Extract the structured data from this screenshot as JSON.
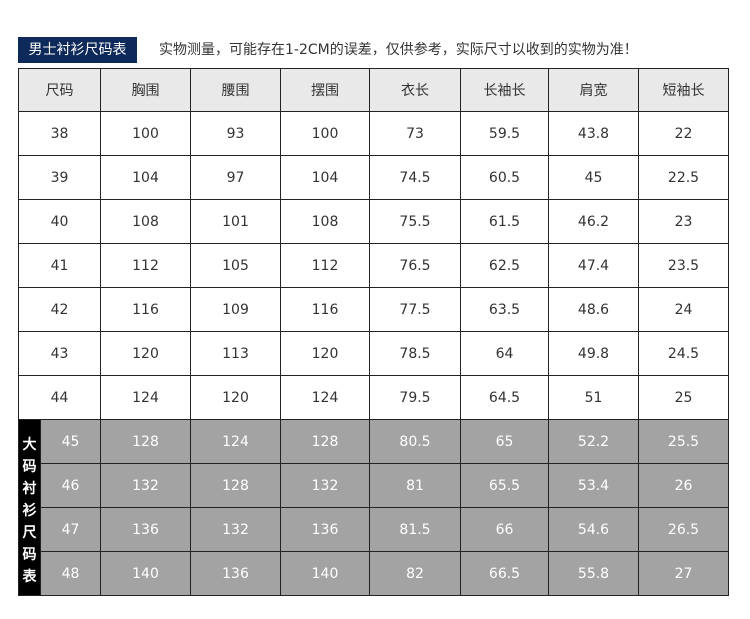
{
  "title": "男士衬衫尺码表",
  "note": "实物测量，可能存在1-2CM的误差，仅供参考，实际尺寸以收到的实物为准！",
  "headers": [
    "尺码",
    "胸围",
    "腰围",
    "摆围",
    "衣长",
    "长袖长",
    "肩宽",
    "短袖长"
  ],
  "rows": [
    [
      "38",
      "100",
      "93",
      "100",
      "73",
      "59.5",
      "43.8",
      "22"
    ],
    [
      "39",
      "104",
      "97",
      "104",
      "74.5",
      "60.5",
      "45",
      "22.5"
    ],
    [
      "40",
      "108",
      "101",
      "108",
      "75.5",
      "61.5",
      "46.2",
      "23"
    ],
    [
      "41",
      "112",
      "105",
      "112",
      "76.5",
      "62.5",
      "47.4",
      "23.5"
    ],
    [
      "42",
      "116",
      "109",
      "116",
      "77.5",
      "63.5",
      "48.6",
      "24"
    ],
    [
      "43",
      "120",
      "113",
      "120",
      "78.5",
      "64",
      "49.8",
      "24.5"
    ],
    [
      "44",
      "124",
      "120",
      "124",
      "79.5",
      "64.5",
      "51",
      "25"
    ]
  ],
  "big_label": "大码衬衫尺码表",
  "big_rows": [
    [
      "45",
      "128",
      "124",
      "128",
      "80.5",
      "65",
      "52.2",
      "25.5"
    ],
    [
      "46",
      "132",
      "128",
      "132",
      "81",
      "65.5",
      "53.4",
      "26"
    ],
    [
      "47",
      "136",
      "132",
      "136",
      "81.5",
      "66",
      "54.6",
      "26.5"
    ],
    [
      "48",
      "140",
      "136",
      "140",
      "82",
      "66.5",
      "55.8",
      "27"
    ]
  ],
  "colors": {
    "badge": "#0e2a5a",
    "header": "#e9e9e9",
    "big_rows": "#a3a3a3",
    "side": "#000000"
  }
}
